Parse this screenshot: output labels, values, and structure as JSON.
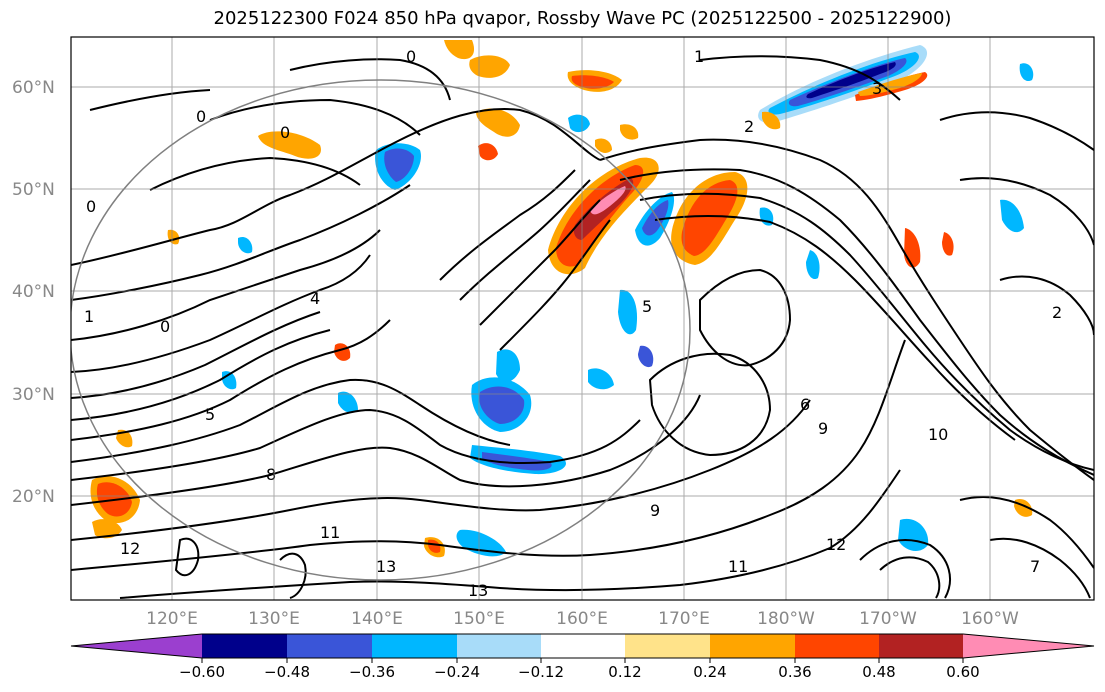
{
  "title": "2025122300 F024 850 hPa qvapor, Rossby Wave PC (2025122500 - 2025122900)",
  "latitude_labels": [
    "60°N",
    "50°N",
    "40°N",
    "30°N",
    "20°N"
  ],
  "longitude_labels": [
    "120°E",
    "130°E",
    "140°E",
    "150°E",
    "160°E",
    "170°E",
    "180°W",
    "170°W",
    "160°W"
  ],
  "colorbar": {
    "colors": [
      "#9b3fcf",
      "#00008b",
      "#3a55d8",
      "#00b7ff",
      "#a8dcf9",
      "#ffffff",
      "#ffe38a",
      "#ffa500",
      "#ff4500",
      "#b22222",
      "#ff8cb4"
    ],
    "tick_labels": [
      "−0.60",
      "−0.48",
      "−0.36",
      "−0.24",
      "−0.12",
      "0.12",
      "0.24",
      "0.36",
      "0.48",
      "0.60"
    ]
  },
  "contour_labels": [
    "0",
    "0",
    "1",
    "2",
    "3",
    "0",
    "0",
    "4",
    "5",
    "5",
    "6",
    "7",
    "8",
    "9",
    "9",
    "10",
    "11",
    "11",
    "12",
    "12",
    "13",
    "13",
    "2",
    "1",
    "0"
  ],
  "colors": {
    "grid": "#888888",
    "contour": "#000000",
    "circle": "#808080"
  }
}
